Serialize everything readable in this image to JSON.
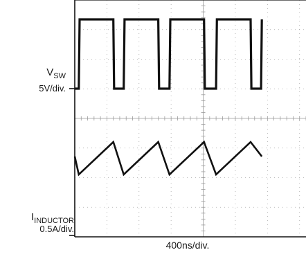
{
  "chart_data": [
    {
      "type": "line",
      "title": "",
      "channel": {
        "name": "V",
        "subscript": "SW",
        "scale": "5V/div."
      },
      "xlabel": "400ns/div.",
      "x_unit": "ns",
      "y_unit": "V",
      "series": [
        {
          "x": [
            0,
            50,
            60,
            480,
            490,
            610,
            620,
            1040,
            1050,
            1180,
            1190,
            1610,
            1620,
            1760,
            1770,
            2190,
            2200,
            2320,
            2330
          ],
          "y": [
            0,
            0,
            2,
            2,
            0,
            0,
            2,
            2,
            0,
            0,
            2,
            2,
            0,
            0,
            2,
            2,
            0,
            0,
            2
          ]
        }
      ],
      "grid": true
    },
    {
      "type": "line",
      "title": "",
      "channel": {
        "name": "I",
        "subscript": "INDUCTOR",
        "scale": "0.5A/div."
      },
      "xlabel": "400ns/div.",
      "x_unit": "ns",
      "y_unit": "A",
      "series": [
        {
          "x": [
            0,
            50,
            480,
            610,
            1040,
            1180,
            1610,
            1760,
            2190,
            2330
          ],
          "y": [
            -0.5,
            -1.0,
            -0.1,
            -1.0,
            -0.1,
            -1.0,
            -0.1,
            -1.0,
            -0.1,
            -0.5
          ]
        }
      ],
      "grid": true
    }
  ]
}
